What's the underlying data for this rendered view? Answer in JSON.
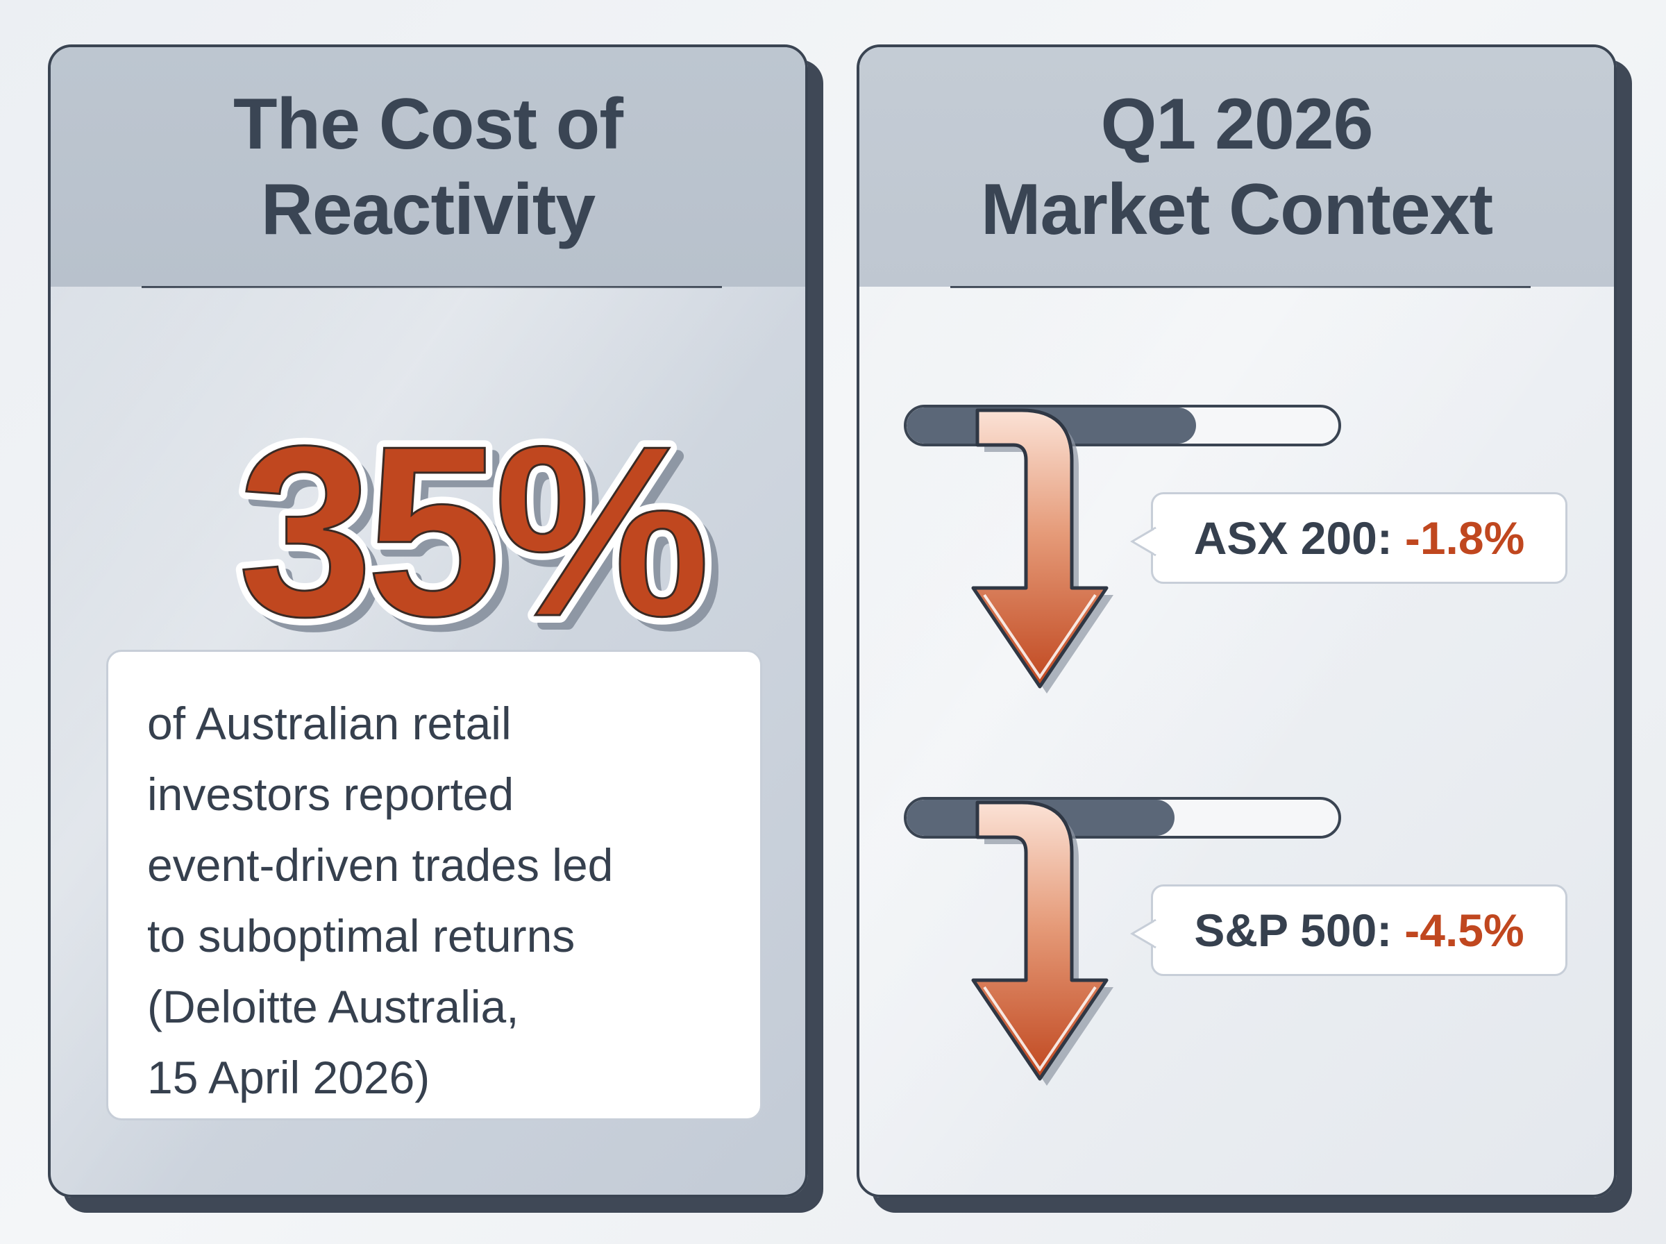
{
  "left_card": {
    "title_lines": [
      "The Cost of",
      "Reactivity"
    ],
    "stat": "35%",
    "description_lines": [
      "of Australian retail",
      "investors reported",
      "event-driven trades led",
      "to suboptimal returns",
      "(Deloitte Australia,",
      "15 April 2026)"
    ]
  },
  "right_card": {
    "title_lines": [
      "Q1 2026",
      "Market Context"
    ],
    "markets": [
      {
        "label": "ASX 200:",
        "value": "-1.8%",
        "level": 0.67
      },
      {
        "label": "S&P 500:",
        "value": "-4.5%",
        "level": 0.62
      }
    ]
  },
  "colors": {
    "accent": "#c0471f",
    "text_dark": "#36404e",
    "border": "#3a4452"
  },
  "icons": [
    "down-arrow-icon",
    "down-arrow-icon"
  ]
}
